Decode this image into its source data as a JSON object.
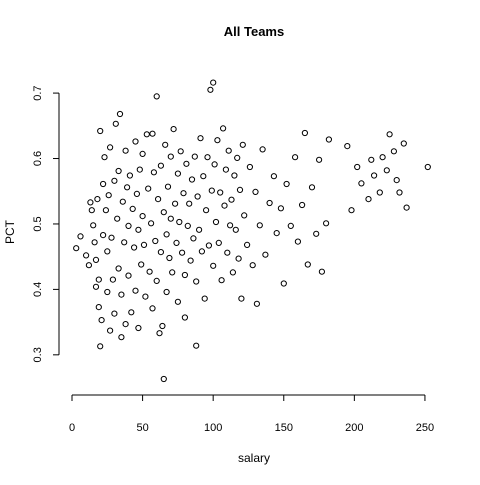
{
  "chart_data": {
    "type": "scatter",
    "title": "All Teams",
    "xlabel": "salary",
    "ylabel": "PCT",
    "xlim": [
      0,
      255
    ],
    "ylim": [
      0.26,
      0.72
    ],
    "x_ticks": [
      0,
      50,
      100,
      150,
      200,
      250
    ],
    "y_ticks": [
      0.3,
      0.4,
      0.5,
      0.6,
      0.7
    ],
    "x_tick_labels": [
      "0",
      "50",
      "100",
      "150",
      "200",
      "250"
    ],
    "y_tick_labels": [
      "0.3",
      "0.4",
      "0.5",
      "0.6",
      "0.7"
    ],
    "grid": false,
    "marker": "open-circle",
    "point_color": "#000000",
    "points": [
      [
        3,
        0.463
      ],
      [
        6,
        0.481
      ],
      [
        10,
        0.452
      ],
      [
        12,
        0.437
      ],
      [
        13,
        0.533
      ],
      [
        14,
        0.521
      ],
      [
        15,
        0.498
      ],
      [
        16,
        0.472
      ],
      [
        17,
        0.445
      ],
      [
        17,
        0.404
      ],
      [
        18,
        0.538
      ],
      [
        19,
        0.415
      ],
      [
        19,
        0.373
      ],
      [
        20,
        0.642
      ],
      [
        20,
        0.313
      ],
      [
        21,
        0.353
      ],
      [
        22,
        0.561
      ],
      [
        22,
        0.483
      ],
      [
        23,
        0.602
      ],
      [
        24,
        0.521
      ],
      [
        25,
        0.458
      ],
      [
        25,
        0.396
      ],
      [
        26,
        0.544
      ],
      [
        27,
        0.617
      ],
      [
        27,
        0.337
      ],
      [
        28,
        0.479
      ],
      [
        29,
        0.415
      ],
      [
        30,
        0.566
      ],
      [
        30,
        0.363
      ],
      [
        31,
        0.653
      ],
      [
        32,
        0.508
      ],
      [
        33,
        0.581
      ],
      [
        33,
        0.432
      ],
      [
        34,
        0.668
      ],
      [
        35,
        0.392
      ],
      [
        35,
        0.327
      ],
      [
        36,
        0.534
      ],
      [
        37,
        0.472
      ],
      [
        38,
        0.612
      ],
      [
        38,
        0.347
      ],
      [
        39,
        0.556
      ],
      [
        40,
        0.497
      ],
      [
        40,
        0.421
      ],
      [
        41,
        0.574
      ],
      [
        42,
        0.365
      ],
      [
        43,
        0.523
      ],
      [
        44,
        0.464
      ],
      [
        45,
        0.626
      ],
      [
        45,
        0.398
      ],
      [
        46,
        0.546
      ],
      [
        47,
        0.491
      ],
      [
        47,
        0.341
      ],
      [
        48,
        0.583
      ],
      [
        49,
        0.438
      ],
      [
        50,
        0.607
      ],
      [
        50,
        0.512
      ],
      [
        51,
        0.468
      ],
      [
        52,
        0.389
      ],
      [
        53,
        0.637
      ],
      [
        54,
        0.554
      ],
      [
        55,
        0.427
      ],
      [
        56,
        0.501
      ],
      [
        57,
        0.638
      ],
      [
        57,
        0.371
      ],
      [
        58,
        0.579
      ],
      [
        59,
        0.474
      ],
      [
        60,
        0.695
      ],
      [
        60,
        0.413
      ],
      [
        61,
        0.538
      ],
      [
        62,
        0.333
      ],
      [
        63,
        0.589
      ],
      [
        63,
        0.457
      ],
      [
        64,
        0.344
      ],
      [
        65,
        0.518
      ],
      [
        65,
        0.263
      ],
      [
        66,
        0.621
      ],
      [
        67,
        0.484
      ],
      [
        67,
        0.396
      ],
      [
        68,
        0.557
      ],
      [
        69,
        0.448
      ],
      [
        70,
        0.603
      ],
      [
        70,
        0.508
      ],
      [
        71,
        0.426
      ],
      [
        72,
        0.645
      ],
      [
        73,
        0.531
      ],
      [
        74,
        0.471
      ],
      [
        75,
        0.577
      ],
      [
        75,
        0.381
      ],
      [
        76,
        0.503
      ],
      [
        77,
        0.611
      ],
      [
        78,
        0.456
      ],
      [
        79,
        0.547
      ],
      [
        80,
        0.422
      ],
      [
        80,
        0.357
      ],
      [
        81,
        0.592
      ],
      [
        82,
        0.497
      ],
      [
        83,
        0.531
      ],
      [
        84,
        0.444
      ],
      [
        85,
        0.568
      ],
      [
        86,
        0.478
      ],
      [
        87,
        0.603
      ],
      [
        88,
        0.412
      ],
      [
        88,
        0.314
      ],
      [
        89,
        0.542
      ],
      [
        90,
        0.491
      ],
      [
        91,
        0.631
      ],
      [
        92,
        0.458
      ],
      [
        93,
        0.573
      ],
      [
        94,
        0.386
      ],
      [
        95,
        0.521
      ],
      [
        96,
        0.602
      ],
      [
        97,
        0.467
      ],
      [
        98,
        0.705
      ],
      [
        99,
        0.551
      ],
      [
        100,
        0.716
      ],
      [
        100,
        0.436
      ],
      [
        101,
        0.591
      ],
      [
        102,
        0.503
      ],
      [
        103,
        0.628
      ],
      [
        104,
        0.471
      ],
      [
        105,
        0.548
      ],
      [
        106,
        0.414
      ],
      [
        107,
        0.646
      ],
      [
        108,
        0.528
      ],
      [
        109,
        0.583
      ],
      [
        110,
        0.456
      ],
      [
        111,
        0.612
      ],
      [
        112,
        0.498
      ],
      [
        113,
        0.537
      ],
      [
        114,
        0.426
      ],
      [
        115,
        0.574
      ],
      [
        116,
        0.491
      ],
      [
        117,
        0.601
      ],
      [
        118,
        0.447
      ],
      [
        119,
        0.552
      ],
      [
        120,
        0.386
      ],
      [
        121,
        0.621
      ],
      [
        122,
        0.513
      ],
      [
        124,
        0.468
      ],
      [
        126,
        0.587
      ],
      [
        128,
        0.437
      ],
      [
        130,
        0.549
      ],
      [
        131,
        0.378
      ],
      [
        133,
        0.498
      ],
      [
        135,
        0.614
      ],
      [
        137,
        0.453
      ],
      [
        140,
        0.532
      ],
      [
        143,
        0.573
      ],
      [
        145,
        0.486
      ],
      [
        148,
        0.524
      ],
      [
        150,
        0.409
      ],
      [
        152,
        0.561
      ],
      [
        155,
        0.497
      ],
      [
        158,
        0.602
      ],
      [
        160,
        0.473
      ],
      [
        163,
        0.529
      ],
      [
        165,
        0.639
      ],
      [
        167,
        0.438
      ],
      [
        170,
        0.556
      ],
      [
        173,
        0.485
      ],
      [
        175,
        0.598
      ],
      [
        177,
        0.427
      ],
      [
        180,
        0.501
      ],
      [
        182,
        0.629
      ],
      [
        195,
        0.619
      ],
      [
        198,
        0.521
      ],
      [
        202,
        0.587
      ],
      [
        205,
        0.562
      ],
      [
        210,
        0.538
      ],
      [
        212,
        0.598
      ],
      [
        214,
        0.574
      ],
      [
        218,
        0.548
      ],
      [
        220,
        0.602
      ],
      [
        223,
        0.582
      ],
      [
        225,
        0.637
      ],
      [
        228,
        0.611
      ],
      [
        230,
        0.567
      ],
      [
        232,
        0.548
      ],
      [
        235,
        0.623
      ],
      [
        237,
        0.525
      ],
      [
        252,
        0.587
      ]
    ]
  }
}
